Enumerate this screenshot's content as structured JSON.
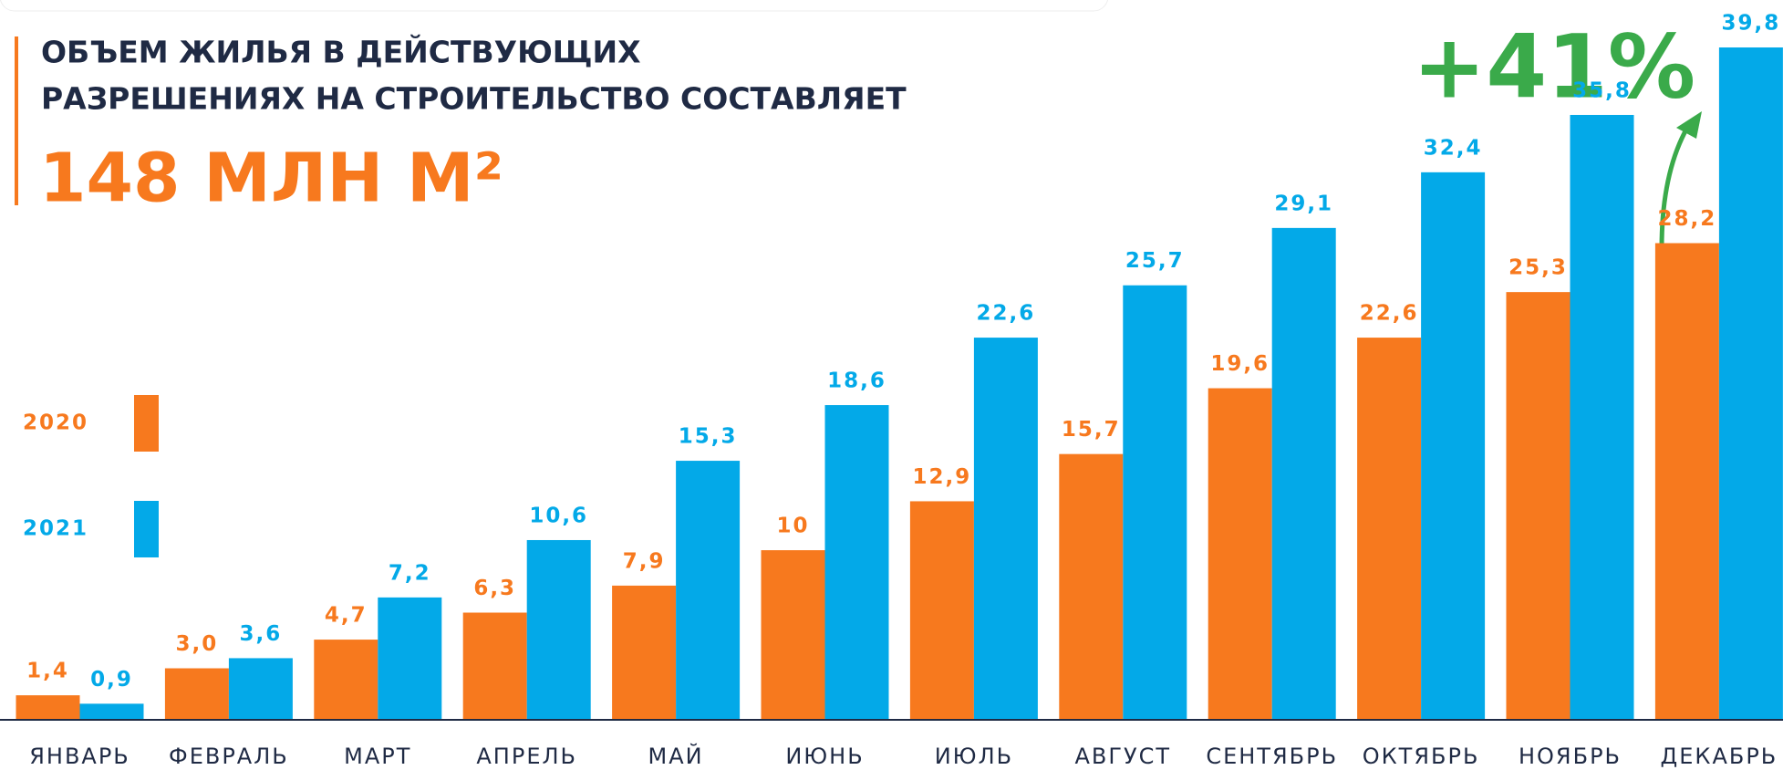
{
  "chart_data": {
    "type": "bar",
    "title": [
      "ОБЪЕМ ЖИЛЬЯ В ДЕЙСТВУЮЩИХ",
      "РАЗРЕШЕНИЯХ НА СТРОИТЕЛЬСТВО СОСТАВЛЯЕТ"
    ],
    "subtitle": "148 МЛН М²",
    "annotation": "+41%",
    "categories": [
      "ЯНВАРЬ",
      "ФЕВРАЛЬ",
      "МАРТ",
      "АПРЕЛЬ",
      "МАЙ",
      "ИЮНЬ",
      "ИЮЛЬ",
      "АВГУСТ",
      "СЕНТЯБРЬ",
      "ОКТЯБРЬ",
      "НОЯБРЬ",
      "ДЕКАБРЬ"
    ],
    "series": [
      {
        "name": "2020",
        "color": "#f7791e",
        "values": [
          1.4,
          3.0,
          4.7,
          6.3,
          7.9,
          10,
          12.9,
          15.7,
          19.6,
          22.6,
          25.3,
          28.2
        ],
        "value_labels": [
          "1,4",
          "3,0",
          "4,7",
          "6,3",
          "7,9",
          "10",
          "12,9",
          "15,7",
          "19,6",
          "22,6",
          "25,3",
          "28,2"
        ]
      },
      {
        "name": "2021",
        "color": "#03a9e8",
        "values": [
          0.9,
          3.6,
          7.2,
          10.6,
          15.3,
          18.6,
          22.6,
          25.7,
          29.1,
          32.4,
          35.8,
          39.8
        ],
        "value_labels": [
          "0,9",
          "3,6",
          "7,2",
          "10,6",
          "15,3",
          "18,6",
          "22,6",
          "25,7",
          "29,1",
          "32,4",
          "35,8",
          "39,8"
        ]
      }
    ]
  }
}
